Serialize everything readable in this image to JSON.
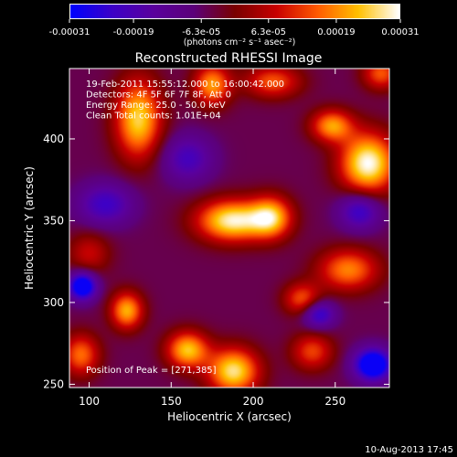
{
  "colorbar": {
    "ticks": [
      "-0.00031",
      "-0.00019",
      "-6.3e-05",
      "6.3e-05",
      "0.00019",
      "0.00031"
    ],
    "tick_values": [
      -0.00031,
      -0.00019,
      -6.3e-05,
      6.3e-05,
      0.00019,
      0.00031
    ],
    "units": "(photons cm⁻² s⁻¹ asec⁻²)",
    "colors": [
      "#0000ff",
      "#3d00c8",
      "#5a009e",
      "#5c007a",
      "#7a0000",
      "#c80000",
      "#ff5a00",
      "#ffc000",
      "#ffffff"
    ]
  },
  "title": "Reconstructed RHESSI Image",
  "info_lines": [
    "19-Feb-2011 15:55:12.000 to 16:00:42.000",
    "Detectors: 4F 5F 6F 7F 8F, Att 0",
    "Energy Range: 25.0 - 50.0 keV",
    "Clean     Total counts: 1.01E+04"
  ],
  "peak_label": "Position of Peak = [271,385]",
  "footer_date": "10-Aug-2013 17:45",
  "chart_data": {
    "type": "heatmap",
    "title": "Reconstructed RHESSI Image",
    "xlabel": "Heliocentric X (arcsec)",
    "ylabel": "Heliocentric Y (arcsec)",
    "xlim": [
      88,
      283
    ],
    "ylim": [
      248,
      443
    ],
    "x_ticks": [
      100,
      150,
      200,
      250
    ],
    "y_ticks": [
      250,
      300,
      350,
      400
    ],
    "zlim": [
      -0.00031,
      0.00031
    ],
    "peak": [
      271,
      385
    ],
    "sources": [
      {
        "x": 270,
        "y": 385,
        "amp": 1.0,
        "sx": 12,
        "sy": 13
      },
      {
        "x": 187,
        "y": 350,
        "amp": 0.95,
        "sx": 15,
        "sy": 9
      },
      {
        "x": 211,
        "y": 352,
        "amp": 0.75,
        "sx": 9,
        "sy": 9
      },
      {
        "x": 130,
        "y": 412,
        "amp": 0.85,
        "sx": 10,
        "sy": 17
      },
      {
        "x": 175,
        "y": 433,
        "amp": 0.7,
        "sx": 8,
        "sy": 9
      },
      {
        "x": 188,
        "y": 258,
        "amp": 0.9,
        "sx": 11,
        "sy": 10
      },
      {
        "x": 160,
        "y": 271,
        "amp": 0.8,
        "sx": 9,
        "sy": 8
      },
      {
        "x": 123,
        "y": 295,
        "amp": 0.75,
        "sx": 7,
        "sy": 8
      },
      {
        "x": 248,
        "y": 408,
        "amp": 0.7,
        "sx": 9,
        "sy": 7
      },
      {
        "x": 258,
        "y": 320,
        "amp": 0.65,
        "sx": 13,
        "sy": 9
      },
      {
        "x": 230,
        "y": 302,
        "amp": 0.55,
        "sx": 8,
        "sy": 7
      },
      {
        "x": 95,
        "y": 268,
        "amp": 0.6,
        "sx": 8,
        "sy": 9
      },
      {
        "x": 212,
        "y": 435,
        "amp": 0.55,
        "sx": 12,
        "sy": 7
      },
      {
        "x": 278,
        "y": 440,
        "amp": 0.55,
        "sx": 8,
        "sy": 7
      },
      {
        "x": 236,
        "y": 270,
        "amp": 0.5,
        "sx": 9,
        "sy": 8
      },
      {
        "x": 100,
        "y": 330,
        "amp": 0.35,
        "sx": 9,
        "sy": 9
      },
      {
        "x": 110,
        "y": 360,
        "amp": -0.5,
        "sx": 12,
        "sy": 9
      },
      {
        "x": 96,
        "y": 310,
        "amp": -0.95,
        "sx": 6,
        "sy": 6
      },
      {
        "x": 273,
        "y": 262,
        "amp": -1.0,
        "sx": 8,
        "sy": 7
      },
      {
        "x": 240,
        "y": 293,
        "amp": -0.6,
        "sx": 7,
        "sy": 6
      },
      {
        "x": 265,
        "y": 356,
        "amp": -0.55,
        "sx": 9,
        "sy": 8
      },
      {
        "x": 160,
        "y": 388,
        "amp": -0.45,
        "sx": 11,
        "sy": 10
      }
    ]
  }
}
